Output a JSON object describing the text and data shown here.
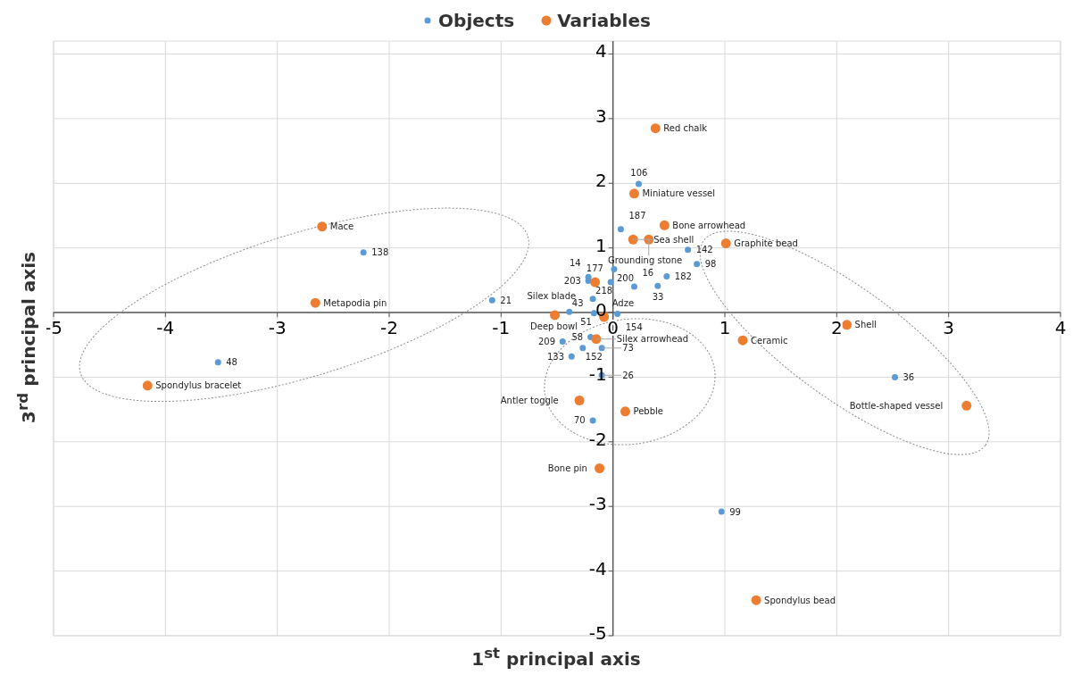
{
  "chart_data": {
    "type": "scatter",
    "xlabel": "1$^{st}$ principal axis",
    "ylabel": "3$^{rd}$ principal axis",
    "xlim": [
      -5,
      4
    ],
    "ylim": [
      -5,
      4.2
    ],
    "xticks": [
      -5,
      -4,
      -3,
      -2,
      -1,
      0,
      1,
      2,
      3,
      4
    ],
    "yticks": [
      -5,
      -4,
      -3,
      -2,
      -1,
      0,
      1,
      2,
      3,
      4
    ],
    "grid": true,
    "legend": "top",
    "marker": "circle",
    "series": [
      {
        "name": "Objects",
        "color": "#5b9bd5",
        "x": [
          0.23,
          0.07,
          0.67,
          0.75,
          0.48,
          0.4,
          0.19,
          0.01,
          -0.02,
          -0.22,
          -0.22,
          -0.18,
          -0.39,
          -0.17,
          -0.45,
          -0.27,
          -0.1,
          -0.37,
          -0.1,
          -0.18,
          2.52,
          0.97,
          -2.23,
          -1.08,
          -3.53,
          0.04,
          -0.2
        ],
        "values": [
          1.99,
          1.29,
          0.97,
          0.75,
          0.56,
          0.41,
          0.4,
          0.67,
          0.47,
          0.55,
          0.49,
          0.21,
          0.01,
          -0.01,
          -0.45,
          -0.55,
          -0.55,
          -0.68,
          -0.97,
          -1.67,
          -1.0,
          -3.08,
          0.93,
          0.19,
          -0.77,
          -0.02,
          -0.38
        ]
      },
      {
        "name": "Variables",
        "color": "#ed7d31",
        "x": [
          0.38,
          0.19,
          0.46,
          0.18,
          0.32,
          1.01,
          -0.16,
          -2.6,
          -2.66,
          -4.16,
          -0.52,
          -0.08,
          -0.15,
          -0.3,
          0.11,
          -0.12,
          1.16,
          2.09,
          3.16,
          1.28
        ],
        "values": [
          2.85,
          1.84,
          1.35,
          1.13,
          1.13,
          1.07,
          0.47,
          1.33,
          0.15,
          -1.13,
          -0.04,
          -0.07,
          -0.41,
          -1.36,
          -1.53,
          -2.41,
          -0.43,
          -0.19,
          -1.44,
          -4.45
        ]
      }
    ],
    "annotations": [
      {
        "text": "106",
        "x": 0.23,
        "y": 1.99
      },
      {
        "text": "187",
        "x": 0.07,
        "y": 1.29
      },
      {
        "text": "142",
        "x": 0.67,
        "y": 0.97
      },
      {
        "text": "98",
        "x": 0.75,
        "y": 0.75
      },
      {
        "text": "182",
        "x": 0.48,
        "y": 0.56
      },
      {
        "text": "33",
        "x": 0.4,
        "y": 0.41
      },
      {
        "text": "16",
        "x": 0.19,
        "y": 0.4
      },
      {
        "text": "200",
        "x": 0.01,
        "y": 0.67
      },
      {
        "text": "177",
        "x": -0.02,
        "y": 0.47
      },
      {
        "text": "14",
        "x": -0.22,
        "y": 0.55
      },
      {
        "text": "203",
        "x": -0.22,
        "y": 0.49
      },
      {
        "text": "218",
        "x": -0.18,
        "y": 0.21
      },
      {
        "text": "43",
        "x": -0.39,
        "y": 0.01
      },
      {
        "text": "51",
        "x": -0.17,
        "y": -0.01
      },
      {
        "text": "209",
        "x": -0.45,
        "y": -0.45
      },
      {
        "text": "152",
        "x": -0.27,
        "y": -0.55
      },
      {
        "text": "73",
        "x": -0.1,
        "y": -0.55
      },
      {
        "text": "133",
        "x": -0.37,
        "y": -0.68
      },
      {
        "text": "26",
        "x": -0.1,
        "y": -0.97
      },
      {
        "text": "70",
        "x": -0.18,
        "y": -1.67
      },
      {
        "text": "36",
        "x": 2.52,
        "y": -1.0
      },
      {
        "text": "99",
        "x": 0.97,
        "y": -3.08
      },
      {
        "text": "138",
        "x": -2.23,
        "y": 0.93
      },
      {
        "text": "21",
        "x": -1.08,
        "y": 0.19
      },
      {
        "text": "48",
        "x": -3.53,
        "y": -0.77
      },
      {
        "text": "154",
        "x": 0.04,
        "y": -0.02
      },
      {
        "text": "58",
        "x": -0.2,
        "y": -0.38
      },
      {
        "text": "Red chalk",
        "x": 0.38,
        "y": 2.85
      },
      {
        "text": "Miniature vessel",
        "x": 0.19,
        "y": 1.84
      },
      {
        "text": "Bone arrowhead",
        "x": 0.46,
        "y": 1.35
      },
      {
        "text": "Sea shell",
        "x": 0.18,
        "y": 1.13
      },
      {
        "text": "Grounding stone",
        "x": 0.32,
        "y": 1.13
      },
      {
        "text": "Graphite bead",
        "x": 1.01,
        "y": 1.07
      },
      {
        "text": "Silex blade",
        "x": -0.16,
        "y": 0.47
      },
      {
        "text": "Mace",
        "x": -2.6,
        "y": 1.33
      },
      {
        "text": "Metapodia pin",
        "x": -2.66,
        "y": 0.15
      },
      {
        "text": "Spondylus bracelet",
        "x": -4.16,
        "y": -1.13
      },
      {
        "text": "Deep bowl",
        "x": -0.52,
        "y": -0.04
      },
      {
        "text": "Adze",
        "x": -0.08,
        "y": -0.07
      },
      {
        "text": "Silex arrowhead",
        "x": -0.15,
        "y": -0.41
      },
      {
        "text": "Antler toggle",
        "x": -0.3,
        "y": -1.36
      },
      {
        "text": "Pebble",
        "x": 0.11,
        "y": -1.53
      },
      {
        "text": "Bone pin",
        "x": -0.12,
        "y": -2.41
      },
      {
        "text": "Ceramic",
        "x": 1.16,
        "y": -0.43
      },
      {
        "text": "Shell",
        "x": 2.09,
        "y": -0.19
      },
      {
        "text": "Bottle-shaped vessel",
        "x": 3.16,
        "y": -1.44
      },
      {
        "text": "Spondylus bead",
        "x": 1.28,
        "y": -4.45
      }
    ]
  }
}
